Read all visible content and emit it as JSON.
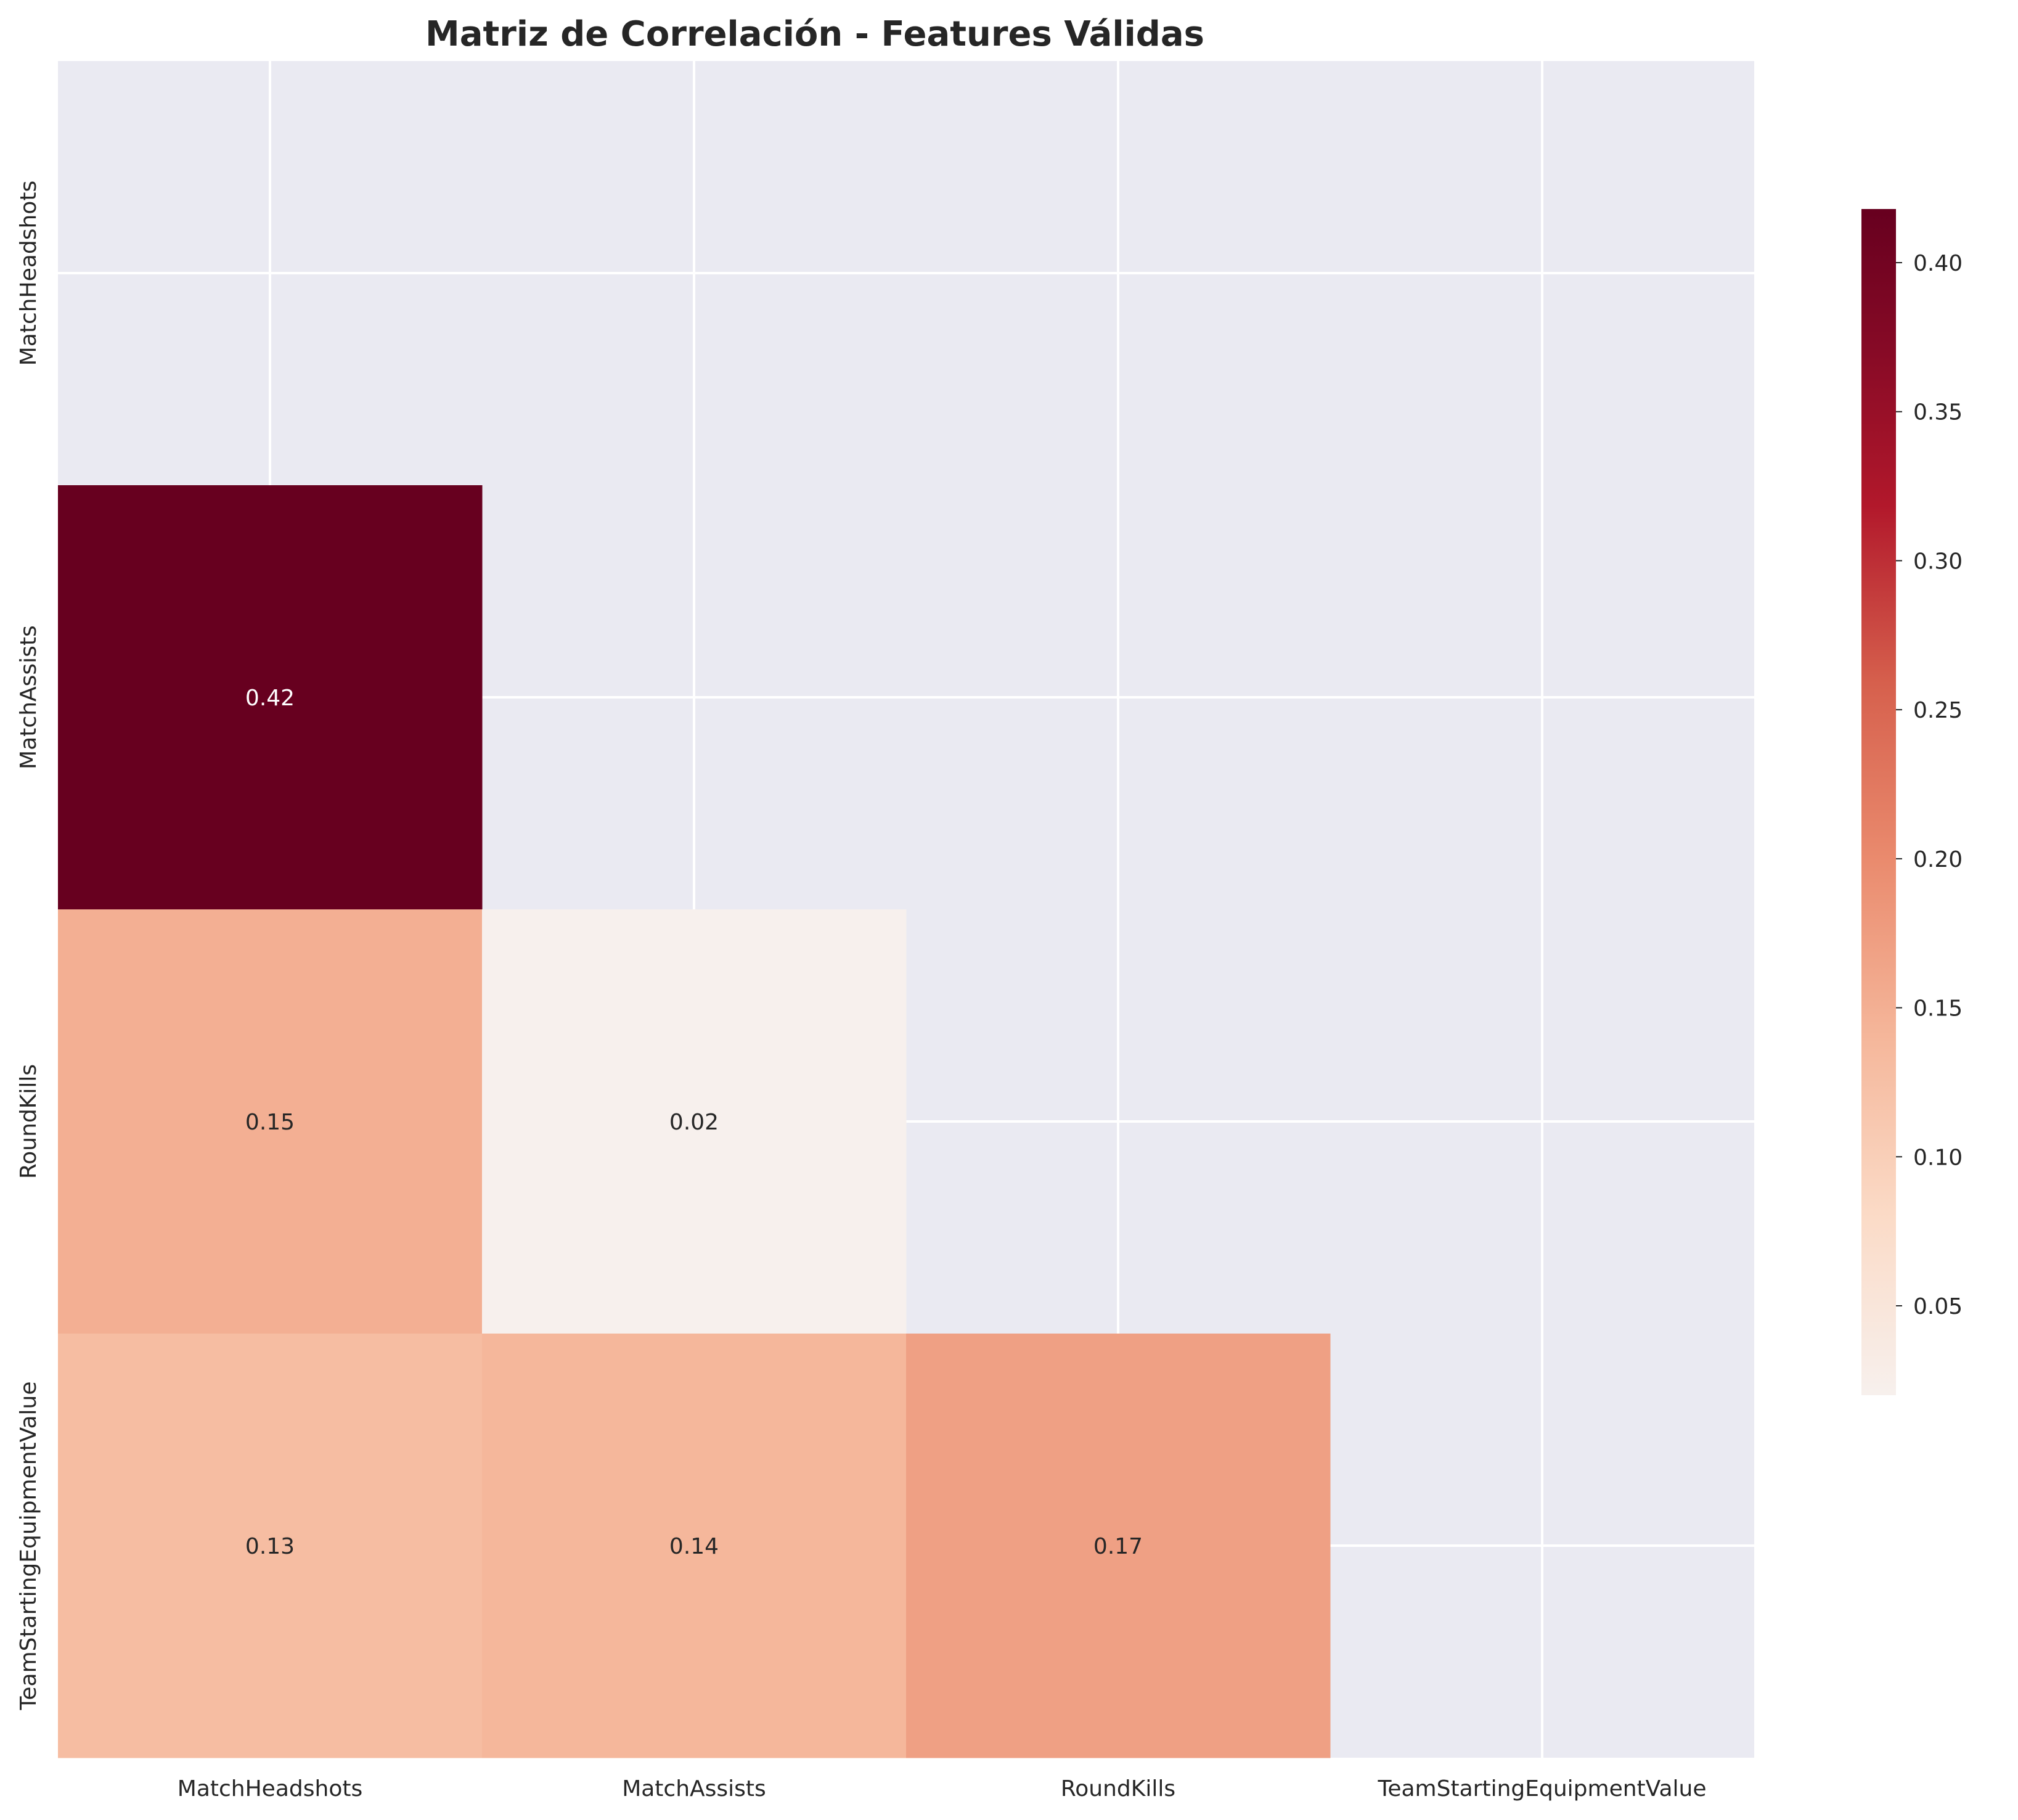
{
  "chart_data": {
    "type": "heatmap",
    "title": "Matriz de Correlación - Features Válidas",
    "xlabel": "",
    "ylabel": "",
    "x_categories": [
      "MatchHeadshots",
      "MatchAssists",
      "RoundKills",
      "TeamStartingEquipmentValue"
    ],
    "y_categories": [
      "MatchHeadshots",
      "MatchAssists",
      "RoundKills",
      "TeamStartingEquipmentValue"
    ],
    "mask": "upper triangle including diagonal",
    "values": [
      [
        null,
        null,
        null,
        null
      ],
      [
        0.42,
        null,
        null,
        null
      ],
      [
        0.15,
        0.02,
        null,
        null
      ],
      [
        0.13,
        0.14,
        0.17,
        null
      ]
    ],
    "cell_labels": [
      [
        null,
        null,
        null,
        null
      ],
      [
        "0.42",
        null,
        null,
        null
      ],
      [
        "0.15",
        "0.02",
        null,
        null
      ],
      [
        "0.13",
        "0.14",
        "0.17",
        null
      ]
    ],
    "colormap": "RdBu_r (red half)",
    "color_min": "#f7f0ed",
    "color_max": "#67001f",
    "vmin": 0.02,
    "vmax": 0.418,
    "colorbar_ticks": [
      "0.05",
      "0.10",
      "0.15",
      "0.20",
      "0.25",
      "0.30",
      "0.35",
      "0.40"
    ],
    "colorbar_tick_values": [
      0.05,
      0.1,
      0.15,
      0.2,
      0.25,
      0.3,
      0.35,
      0.4
    ],
    "grid": true,
    "background_color": "#eaeaf2",
    "grid_color": "#ffffff"
  }
}
